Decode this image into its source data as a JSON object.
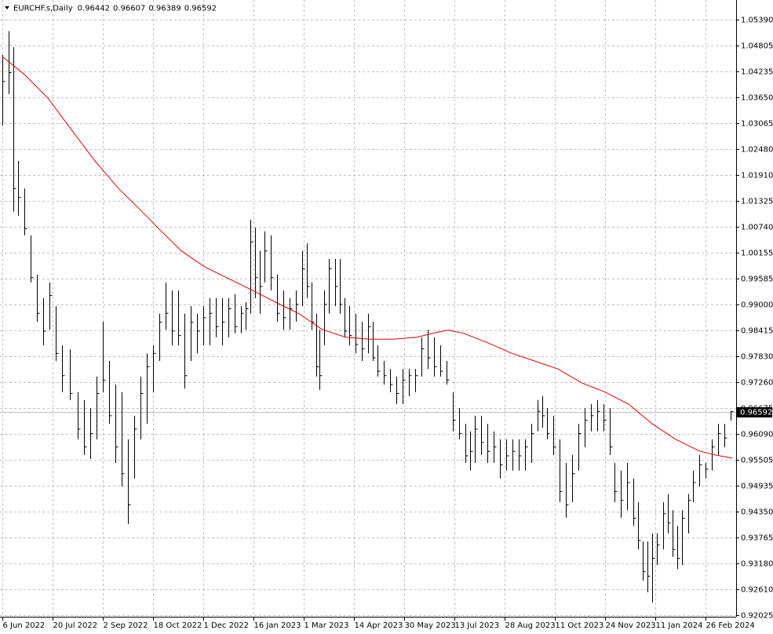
{
  "chart_data": {
    "type": "ohlc",
    "title": "EURCHF.s,Daily",
    "header_quote": [
      0.96442,
      0.96607,
      0.96389,
      0.96592
    ],
    "color": "#000000",
    "grid": true,
    "xlim": [
      -1.5,
      467.5
    ],
    "xticks": [
      {
        "value": 0,
        "label": "6 Jun 2022"
      },
      {
        "value": 32,
        "label": "20 Jul 2022"
      },
      {
        "value": 64,
        "label": "2 Sep 2022"
      },
      {
        "value": 96,
        "label": "18 Oct 2022"
      },
      {
        "value": 128,
        "label": "1 Dec 2022"
      },
      {
        "value": 160,
        "label": "16 Jan 2023"
      },
      {
        "value": 192,
        "label": "1 Mar 2023"
      },
      {
        "value": 224,
        "label": "14 Apr 2023"
      },
      {
        "value": 256,
        "label": "30 May 2023"
      },
      {
        "value": 288,
        "label": "13 Jul 2023"
      },
      {
        "value": 320,
        "label": "28 Aug 2023"
      },
      {
        "value": 352,
        "label": "11 Oct 2023"
      },
      {
        "value": 384,
        "label": "24 Nov 2023"
      },
      {
        "value": 416,
        "label": "11 Jan 2024"
      },
      {
        "value": 448,
        "label": "26 Feb 2024"
      }
    ],
    "ylim": [
      0.92007,
      1.0583
    ],
    "yticks": [
      {
        "value": 1.0539,
        "label": "1.05390"
      },
      1.04805,
      1.04235,
      {
        "value": 1.0365,
        "label": "1.03650"
      },
      1.03065,
      {
        "value": 1.0248,
        "label": "1.02480"
      },
      {
        "value": 1.0191,
        "label": "1.01910"
      },
      1.01325,
      {
        "value": 1.0074,
        "label": "1.00740"
      },
      1.00155,
      0.99585,
      {
        "value": 0.99,
        "label": "0.99000"
      },
      0.98415,
      {
        "value": 0.9783,
        "label": "0.97830"
      },
      {
        "value": 0.9726,
        "label": "0.97260"
      },
      0.96675,
      {
        "value": 0.9609,
        "label": "0.96090"
      },
      0.95505,
      0.94935,
      {
        "value": 0.9435,
        "label": "0.94350"
      },
      0.93765,
      {
        "value": 0.9318,
        "label": "0.93180"
      },
      {
        "value": 0.9261,
        "label": "0.92610"
      },
      0.92025
    ],
    "x": [
      0,
      4,
      7,
      10,
      14,
      18,
      22,
      26,
      30,
      34,
      38,
      43,
      48,
      52,
      56,
      60,
      64,
      68,
      72,
      76,
      80,
      84,
      88,
      92,
      96,
      100,
      104,
      108,
      112,
      116,
      120,
      124,
      128,
      132,
      136,
      140,
      144,
      148,
      152,
      155,
      158,
      161,
      164,
      167,
      171,
      175,
      179,
      183,
      187,
      191,
      194,
      197,
      200,
      202,
      205,
      208,
      212,
      215,
      218,
      221,
      225,
      229,
      233,
      236,
      239,
      243,
      247,
      251,
      255,
      259,
      263,
      267,
      271,
      275,
      279,
      283,
      287,
      291,
      295,
      298,
      301,
      305,
      309,
      313,
      317,
      321,
      325,
      329,
      333,
      337,
      341,
      344,
      347,
      351,
      355,
      359,
      363,
      367,
      371,
      375,
      379,
      383,
      387,
      390,
      394,
      398,
      402,
      405,
      408,
      411,
      414,
      417,
      421,
      424,
      427,
      430,
      433,
      437,
      440,
      444,
      448,
      452,
      456,
      460,
      464
    ],
    "high": [
      1.046,
      1.0513,
      1.0477,
      1.0222,
      1.016,
      1.0055,
      0.9967,
      0.9914,
      0.9949,
      0.9896,
      0.9808,
      0.9799,
      0.9703,
      0.9685,
      0.9667,
      0.9738,
      0.9861,
      0.9773,
      0.972,
      0.9703,
      0.9597,
      0.965,
      0.9738,
      0.979,
      0.9808,
      0.9879,
      0.9949,
      0.9931,
      0.9931,
      0.9879,
      0.9896,
      0.9879,
      0.9896,
      0.9914,
      0.9914,
      0.9914,
      0.9914,
      0.9923,
      0.9896,
      0.9905,
      1.009,
      1.0072,
      1.002,
      1.0064,
      1.0055,
      0.9967,
      0.9931,
      0.9914,
      0.9931,
      1.002,
      1.0037,
      0.9949,
      0.9879,
      0.9843,
      0.9931,
      1.0002,
      1.0002,
      1.0002,
      0.9914,
      0.9896,
      0.9879,
      0.9861,
      0.9879,
      0.9861,
      0.9808,
      0.9773,
      0.9755,
      0.9738,
      0.9755,
      0.9755,
      0.9755,
      0.9826,
      0.9843,
      0.9826,
      0.9808,
      0.9773,
      0.9703,
      0.9667,
      0.9632,
      0.9615,
      0.965,
      0.965,
      0.9632,
      0.9615,
      0.9597,
      0.9597,
      0.9597,
      0.9597,
      0.9597,
      0.9632,
      0.9685,
      0.9694,
      0.9667,
      0.965,
      0.9597,
      0.9544,
      0.9562,
      0.9632,
      0.9667,
      0.9676,
      0.9685,
      0.9676,
      0.9667,
      0.9544,
      0.9527,
      0.9544,
      0.9509,
      0.9456,
      0.9368,
      0.9368,
      0.9386,
      0.9386,
      0.9456,
      0.9474,
      0.9438,
      0.9403,
      0.9438,
      0.9474,
      0.9527,
      0.9562,
      0.9544,
      0.9597,
      0.9632,
      0.9632,
      0.96607
    ],
    "low": [
      1.0301,
      1.0372,
      1.0108,
      1.0099,
      1.0055,
      0.9949,
      0.9861,
      0.9808,
      0.9843,
      0.9773,
      0.9703,
      0.9685,
      0.9597,
      0.9562,
      0.9553,
      0.9597,
      0.9703,
      0.9632,
      0.9544,
      0.9491,
      0.9407,
      0.9509,
      0.9597,
      0.9632,
      0.9703,
      0.9773,
      0.9843,
      0.9808,
      0.9808,
      0.9711,
      0.9773,
      0.979,
      0.9808,
      0.9808,
      0.9826,
      0.9808,
      0.9826,
      0.9835,
      0.9835,
      0.9843,
      0.9879,
      0.9914,
      0.9879,
      0.9949,
      0.9931,
      0.9861,
      0.9843,
      0.9843,
      0.9861,
      0.9896,
      0.9914,
      0.9843,
      0.9738,
      0.9708,
      0.9808,
      0.9879,
      0.9896,
      0.9879,
      0.9826,
      0.9808,
      0.979,
      0.9773,
      0.979,
      0.9773,
      0.9738,
      0.972,
      0.9703,
      0.9676,
      0.9676,
      0.9694,
      0.9703,
      0.9738,
      0.9755,
      0.9738,
      0.9738,
      0.972,
      0.9615,
      0.9597,
      0.9544,
      0.9527,
      0.9544,
      0.9562,
      0.9544,
      0.9544,
      0.9509,
      0.9527,
      0.9527,
      0.9527,
      0.9527,
      0.9544,
      0.9615,
      0.9623,
      0.9597,
      0.9562,
      0.9456,
      0.9421,
      0.9456,
      0.9527,
      0.9579,
      0.9615,
      0.9615,
      0.9615,
      0.9562,
      0.9456,
      0.9421,
      0.9438,
      0.9403,
      0.935,
      0.928,
      0.9254,
      0.9231,
      0.9315,
      0.935,
      0.9386,
      0.9333,
      0.9306,
      0.9315,
      0.9386,
      0.9456,
      0.9491,
      0.9509,
      0.9527,
      0.9562,
      0.9579,
      0.96389
    ],
    "close": [
      1.04,
      1.042,
      1.016,
      1.014,
      1.007,
      0.996,
      0.988,
      0.984,
      0.992,
      0.979,
      0.974,
      0.97,
      0.962,
      0.958,
      0.961,
      0.97,
      0.973,
      0.965,
      0.958,
      0.952,
      0.945,
      0.962,
      0.97,
      0.976,
      0.979,
      0.986,
      0.988,
      0.984,
      0.983,
      0.974,
      0.986,
      0.984,
      0.987,
      0.988,
      0.985,
      0.986,
      0.989,
      0.985,
      0.988,
      0.989,
      1.004,
      0.996,
      0.994,
      1.002,
      0.996,
      0.988,
      0.987,
      0.989,
      0.99,
      0.998,
      0.994,
      0.986,
      0.976,
      0.974,
      0.99,
      0.998,
      0.994,
      0.99,
      0.984,
      0.983,
      0.981,
      0.98,
      0.985,
      0.978,
      0.975,
      0.974,
      0.972,
      0.97,
      0.973,
      0.974,
      0.974,
      0.98,
      0.978,
      0.976,
      0.975,
      0.973,
      0.964,
      0.961,
      0.956,
      0.957,
      0.962,
      0.959,
      0.957,
      0.958,
      0.954,
      0.956,
      0.957,
      0.956,
      0.958,
      0.961,
      0.966,
      0.965,
      0.961,
      0.958,
      0.948,
      0.945,
      0.952,
      0.961,
      0.964,
      0.965,
      0.966,
      0.964,
      0.958,
      0.948,
      0.946,
      0.95,
      0.942,
      0.937,
      0.93,
      0.929,
      0.933,
      0.936,
      0.943,
      0.941,
      0.935,
      0.933,
      0.942,
      0.946,
      0.95,
      0.954,
      0.953,
      0.958,
      0.961,
      0.96,
      0.96592
    ],
    "ma": {
      "color": "#e00000",
      "x": [
        0,
        14,
        29,
        44,
        59,
        74,
        89,
        99,
        114,
        129,
        144,
        159,
        174,
        189,
        204,
        219,
        234,
        249,
        264,
        274,
        284,
        294,
        309,
        324,
        339,
        354,
        369,
        384,
        399,
        414,
        429,
        444,
        454,
        465
      ],
      "values": [
        1.0456,
        1.0416,
        1.0363,
        1.0292,
        1.0222,
        1.016,
        1.0108,
        1.0072,
        1.002,
        0.9984,
        0.9958,
        0.9932,
        0.9905,
        0.9879,
        0.9843,
        0.9826,
        0.9822,
        0.9822,
        0.9826,
        0.9835,
        0.9842,
        0.9835,
        0.9814,
        0.9791,
        0.9773,
        0.9755,
        0.9724,
        0.9703,
        0.9676,
        0.9632,
        0.9597,
        0.9571,
        0.9562,
        0.9555
      ]
    }
  }
}
